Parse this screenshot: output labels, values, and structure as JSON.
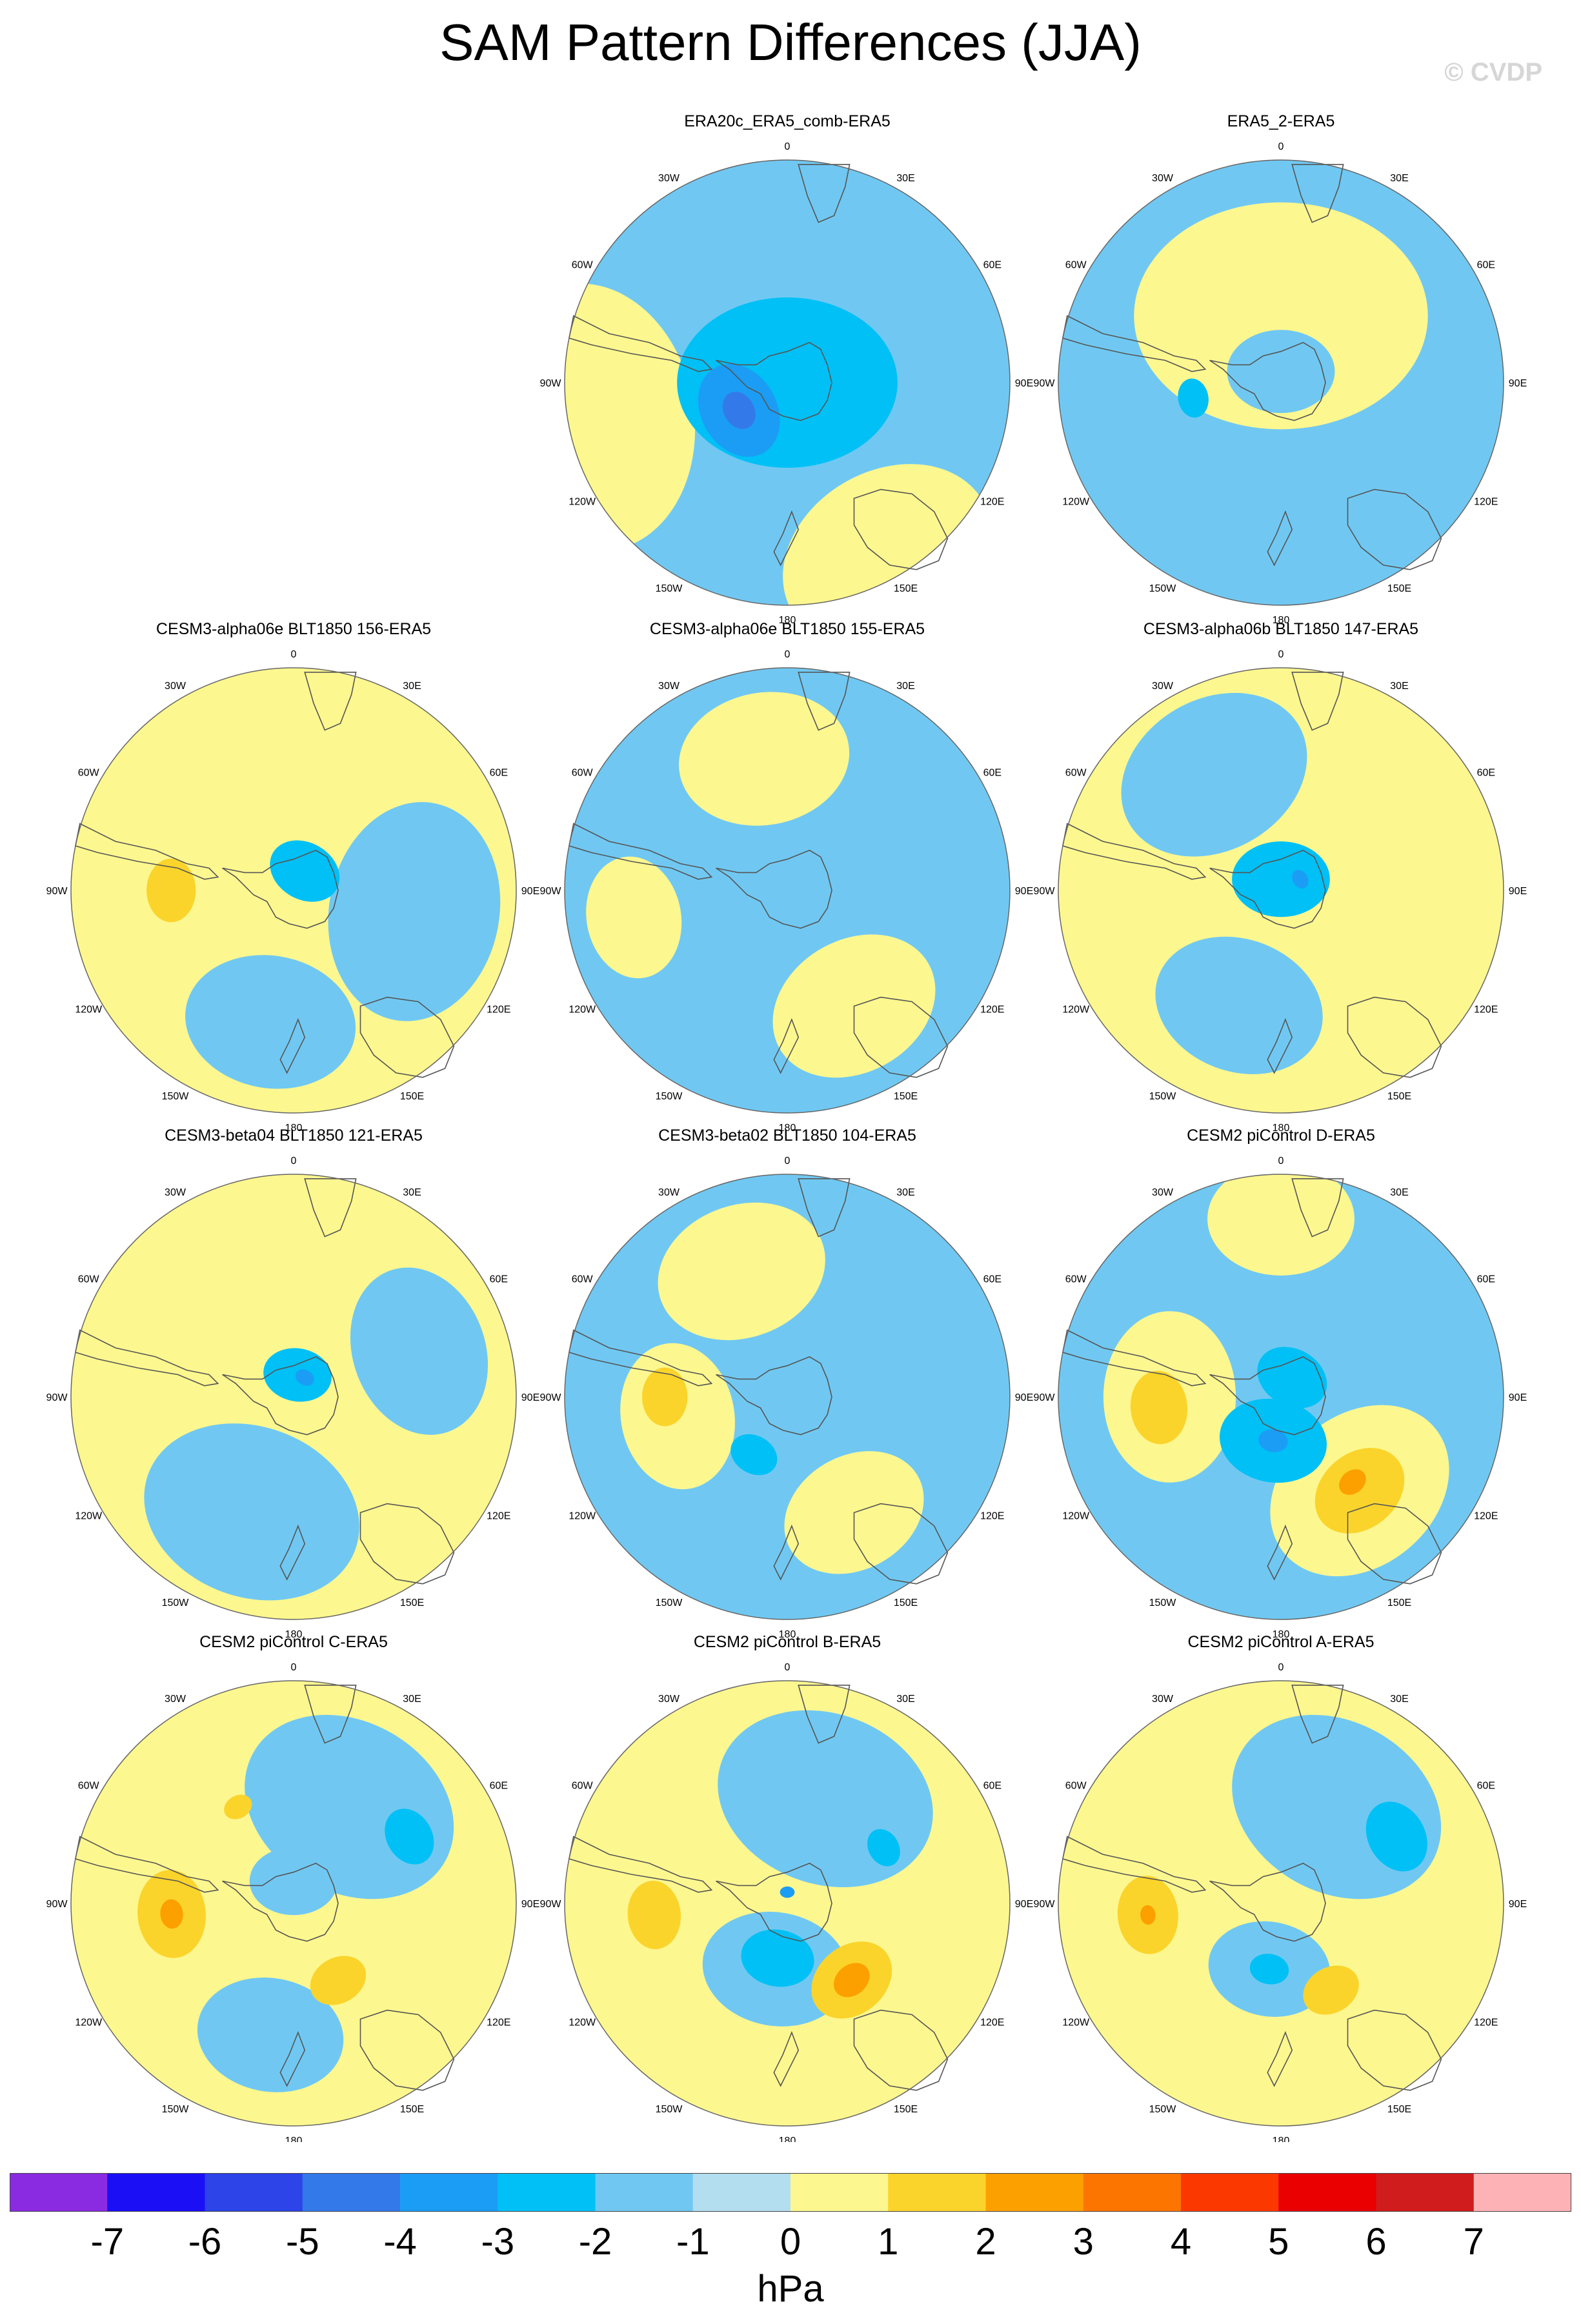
{
  "title": "SAM Pattern Differences (JJA)",
  "copyright": "© CVDP",
  "colors": {
    "levels": [
      "#8a2be2",
      "#1b10f5",
      "#2d44e8",
      "#3479ea",
      "#1b9df5",
      "#00c0f5",
      "#70c8f2",
      "#b3def0",
      "#fdf78f",
      "#fbd42b",
      "#fca000",
      "#fb7500",
      "#fb3800",
      "#ea0000",
      "#d01c1c",
      "#fdb3b6"
    ],
    "coast": "#555555",
    "rim": "#666666"
  },
  "colorbar": {
    "labels": [
      "-7",
      "-6",
      "-5",
      "-4",
      "-3",
      "-2",
      "-1",
      "0",
      "1",
      "2",
      "3",
      "4",
      "5",
      "6",
      "7"
    ],
    "units": "hPa"
  },
  "longitude_labels": [
    "0",
    "30E",
    "60E",
    "90E",
    "120E",
    "150E",
    "180",
    "150W",
    "120W",
    "90W",
    "60W",
    "30W"
  ],
  "panels": [
    {
      "title": "ERA20c_ERA5_comb-ERA5",
      "background": "neg1",
      "features": [
        {
          "type": "positive",
          "level": 1,
          "lon": -100,
          "r": 0.9,
          "size": 0.55
        },
        {
          "type": "positive",
          "level": 1,
          "lon": 150,
          "r": 0.9,
          "size": 0.45
        },
        {
          "type": "negative",
          "level": 2,
          "lon": 0,
          "r": 0.0,
          "size": 0.45
        },
        {
          "type": "negative",
          "level": 3,
          "lon": -120,
          "r": 0.25,
          "size": 0.2
        },
        {
          "type": "negative",
          "level": 4,
          "lon": -120,
          "r": 0.25,
          "size": 0.08
        }
      ]
    },
    {
      "title": "ERA5_2-ERA5",
      "background": "neg1",
      "features": [
        {
          "type": "positive",
          "level": 1,
          "lon": 0,
          "r": 0.3,
          "size": 0.6
        },
        {
          "type": "negative",
          "level": 1,
          "lon": 0,
          "r": 0.05,
          "size": 0.22
        },
        {
          "type": "negative",
          "level": 2,
          "lon": -100,
          "r": 0.4,
          "size": 0.08
        }
      ]
    },
    {
      "title": "CESM3-alpha06e BLT1850 156-ERA5",
      "background": "pos1",
      "features": [
        {
          "type": "negative",
          "level": 1,
          "lon": 100,
          "r": 0.55,
          "size": 0.45
        },
        {
          "type": "negative",
          "level": 1,
          "lon": -170,
          "r": 0.6,
          "size": 0.35
        },
        {
          "type": "negative",
          "level": 2,
          "lon": 30,
          "r": 0.1,
          "size": 0.15
        },
        {
          "type": "positive",
          "level": 2,
          "lon": -90,
          "r": 0.55,
          "size": 0.13
        }
      ]
    },
    {
      "title": "CESM3-alpha06e BLT1850 155-ERA5",
      "background": "neg1",
      "features": [
        {
          "type": "positive",
          "level": 1,
          "lon": -10,
          "r": 0.6,
          "size": 0.35
        },
        {
          "type": "positive",
          "level": 1,
          "lon": 150,
          "r": 0.6,
          "size": 0.35
        },
        {
          "type": "positive",
          "level": 1,
          "lon": -100,
          "r": 0.7,
          "size": 0.25
        }
      ]
    },
    {
      "title": "CESM3-alpha06b BLT1850 147-ERA5",
      "background": "pos1",
      "features": [
        {
          "type": "negative",
          "level": 1,
          "lon": -30,
          "r": 0.6,
          "size": 0.4
        },
        {
          "type": "negative",
          "level": 1,
          "lon": -160,
          "r": 0.55,
          "size": 0.35
        },
        {
          "type": "negative",
          "level": 2,
          "lon": 0,
          "r": 0.05,
          "size": 0.2
        },
        {
          "type": "negative",
          "level": 3,
          "lon": 60,
          "r": 0.1,
          "size": 0.04
        }
      ]
    },
    {
      "title": "CESM3-beta04 BLT1850 121-ERA5",
      "background": "pos1",
      "features": [
        {
          "type": "negative",
          "level": 1,
          "lon": -160,
          "r": 0.55,
          "size": 0.45
        },
        {
          "type": "negative",
          "level": 1,
          "lon": 70,
          "r": 0.6,
          "size": 0.35
        },
        {
          "type": "negative",
          "level": 2,
          "lon": 10,
          "r": 0.1,
          "size": 0.14
        },
        {
          "type": "negative",
          "level": 3,
          "lon": 30,
          "r": 0.1,
          "size": 0.04
        }
      ]
    },
    {
      "title": "CESM3-beta02 BLT1850 104-ERA5",
      "background": "neg1",
      "features": [
        {
          "type": "positive",
          "level": 1,
          "lon": -20,
          "r": 0.6,
          "size": 0.35
        },
        {
          "type": "positive",
          "level": 1,
          "lon": -100,
          "r": 0.5,
          "size": 0.3
        },
        {
          "type": "positive",
          "level": 1,
          "lon": 150,
          "r": 0.6,
          "size": 0.3
        },
        {
          "type": "positive",
          "level": 2,
          "lon": -90,
          "r": 0.55,
          "size": 0.12
        },
        {
          "type": "negative",
          "level": 2,
          "lon": -150,
          "r": 0.3,
          "size": 0.1
        }
      ]
    },
    {
      "title": "CESM2 piControl D-ERA5",
      "background": "neg1",
      "features": [
        {
          "type": "positive",
          "level": 1,
          "lon": -90,
          "r": 0.5,
          "size": 0.35
        },
        {
          "type": "positive",
          "level": 1,
          "lon": 140,
          "r": 0.55,
          "size": 0.4
        },
        {
          "type": "positive",
          "level": 1,
          "lon": 0,
          "r": 0.8,
          "size": 0.3
        },
        {
          "type": "positive",
          "level": 2,
          "lon": -95,
          "r": 0.55,
          "size": 0.15
        },
        {
          "type": "positive",
          "level": 2,
          "lon": 140,
          "r": 0.55,
          "size": 0.2
        },
        {
          "type": "positive",
          "level": 3,
          "lon": 140,
          "r": 0.5,
          "size": 0.06
        },
        {
          "type": "negative",
          "level": 2,
          "lon": -170,
          "r": 0.2,
          "size": 0.22
        },
        {
          "type": "negative",
          "level": 3,
          "lon": -170,
          "r": 0.2,
          "size": 0.06
        },
        {
          "type": "negative",
          "level": 2,
          "lon": 30,
          "r": 0.1,
          "size": 0.15
        }
      ]
    },
    {
      "title": "CESM2 piControl C-ERA5",
      "background": "pos1",
      "features": [
        {
          "type": "negative",
          "level": 1,
          "lon": 30,
          "r": 0.5,
          "size": 0.45
        },
        {
          "type": "negative",
          "level": 1,
          "lon": -170,
          "r": 0.6,
          "size": 0.3
        },
        {
          "type": "negative",
          "level": 1,
          "lon": 0,
          "r": 0.1,
          "size": 0.18
        },
        {
          "type": "negative",
          "level": 2,
          "lon": 60,
          "r": 0.6,
          "size": 0.12
        },
        {
          "type": "positive",
          "level": 2,
          "lon": -95,
          "r": 0.55,
          "size": 0.18
        },
        {
          "type": "positive",
          "level": 3,
          "lon": -95,
          "r": 0.55,
          "size": 0.06
        },
        {
          "type": "positive",
          "level": 2,
          "lon": 150,
          "r": 0.4,
          "size": 0.12
        },
        {
          "type": "positive",
          "level": 2,
          "lon": -30,
          "r": 0.5,
          "size": 0.06
        }
      ]
    },
    {
      "title": "CESM2 piControl B-ERA5",
      "background": "pos1",
      "features": [
        {
          "type": "negative",
          "level": 1,
          "lon": 20,
          "r": 0.5,
          "size": 0.45
        },
        {
          "type": "negative",
          "level": 1,
          "lon": -170,
          "r": 0.3,
          "size": 0.3
        },
        {
          "type": "negative",
          "level": 2,
          "lon": 60,
          "r": 0.5,
          "size": 0.08
        },
        {
          "type": "negative",
          "level": 2,
          "lon": -170,
          "r": 0.25,
          "size": 0.15
        },
        {
          "type": "negative",
          "level": 3,
          "lon": 0,
          "r": 0.05,
          "size": 0.03
        },
        {
          "type": "positive",
          "level": 2,
          "lon": -95,
          "r": 0.6,
          "size": 0.14
        },
        {
          "type": "positive",
          "level": 2,
          "lon": 140,
          "r": 0.45,
          "size": 0.18
        },
        {
          "type": "positive",
          "level": 3,
          "lon": 140,
          "r": 0.45,
          "size": 0.08
        }
      ]
    },
    {
      "title": "CESM2 piControl A-ERA5",
      "background": "pos1",
      "features": [
        {
          "type": "negative",
          "level": 1,
          "lon": 30,
          "r": 0.5,
          "size": 0.45
        },
        {
          "type": "negative",
          "level": 1,
          "lon": -170,
          "r": 0.3,
          "size": 0.25
        },
        {
          "type": "negative",
          "level": 2,
          "lon": 60,
          "r": 0.6,
          "size": 0.15
        },
        {
          "type": "negative",
          "level": 2,
          "lon": -170,
          "r": 0.3,
          "size": 0.08
        },
        {
          "type": "positive",
          "level": 2,
          "lon": -95,
          "r": 0.6,
          "size": 0.16
        },
        {
          "type": "positive",
          "level": 3,
          "lon": -95,
          "r": 0.6,
          "size": 0.04
        },
        {
          "type": "positive",
          "level": 2,
          "lon": 150,
          "r": 0.45,
          "size": 0.12
        }
      ]
    }
  ]
}
